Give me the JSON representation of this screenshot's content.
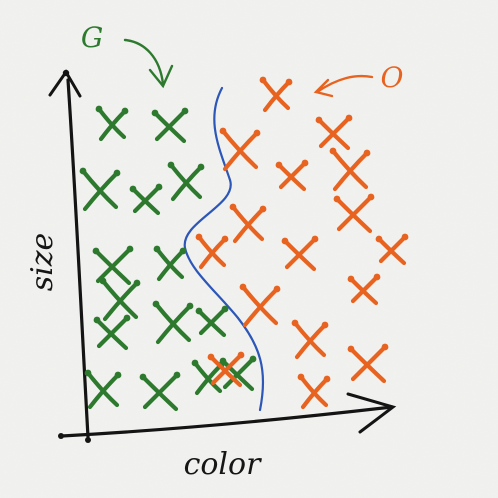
{
  "diagram": {
    "axes": {
      "x_label": "color",
      "y_label": "size"
    },
    "classes": [
      {
        "label": "G",
        "color": "#2d7a2f",
        "marker": "x-mark",
        "count": 15
      },
      {
        "label": "O",
        "color": "#e8631f",
        "marker": "x-mark",
        "count": 16
      }
    ],
    "boundary": {
      "color": "#2c56b8"
    },
    "background": "#f2f2f0"
  }
}
